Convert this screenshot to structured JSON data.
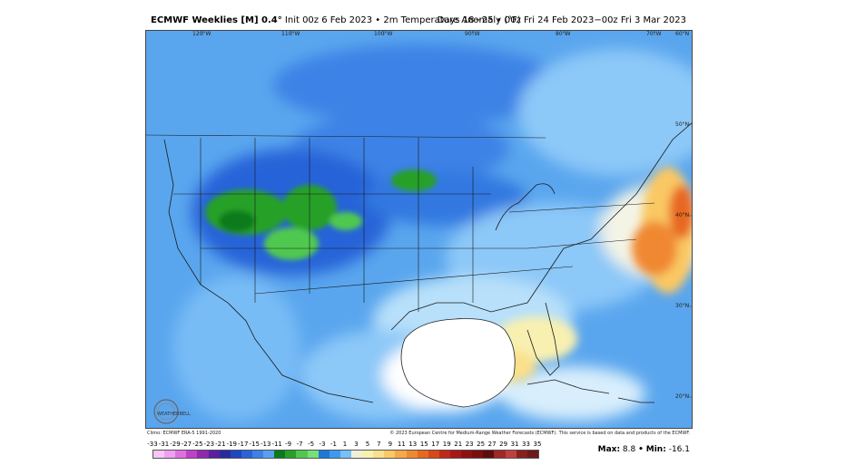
{
  "header": {
    "model": "ECMWF Weeklies [M] 0.4",
    "degree": "°",
    "init": "Init 00z 6 Feb 2023",
    "sep": "•",
    "field": "2m Temperature Anomaly (°F)",
    "valid": "Days 18−25 • 00z Fri 24 Feb 2023−00z Fri 3 Mar 2023"
  },
  "map": {
    "lon_labels": [
      "120°W",
      "110°W",
      "100°W",
      "90°W",
      "80°W",
      "70°W"
    ],
    "lat_labels": [
      "60°N",
      "50°N",
      "40°N",
      "30°N",
      "20°N"
    ],
    "logo_text": "WEATHERBELL"
  },
  "footer": {
    "climo": "Climo: ECMWF ERA-5 1991-2020",
    "copyright": "© 2023 European Centre for Medium-Range Weather Forecasts (ECMWF). This service is based on data and products of the ECMWF."
  },
  "scale": {
    "labels": [
      "-33",
      "-31",
      "-29",
      "-27",
      "-25",
      "-23",
      "-21",
      "-19",
      "-17",
      "-15",
      "-13",
      "-11",
      "-9",
      "-7",
      "-5",
      "-3",
      "-1",
      "1",
      "3",
      "5",
      "7",
      "9",
      "11",
      "13",
      "15",
      "17",
      "19",
      "21",
      "23",
      "25",
      "27",
      "29",
      "31",
      "33",
      "35"
    ],
    "colors": [
      "#f7c6f7",
      "#f0a0f0",
      "#e070e0",
      "#c040c8",
      "#9028b0",
      "#5a1ea0",
      "#2a2aa0",
      "#1e46c0",
      "#2864d8",
      "#3c82e6",
      "#5aa0f0",
      "#0a7a1e",
      "#28a028",
      "#50c850",
      "#78e078",
      "#1e78d8",
      "#3c9af0",
      "#78c0f8",
      "#f0f0d8",
      "#f8f0b0",
      "#fae08c",
      "#fac864",
      "#f8a848",
      "#f08830",
      "#e86820",
      "#d84818",
      "#c02818",
      "#a81818",
      "#901010",
      "#781010",
      "#600c0c",
      "#a02828",
      "#c04040",
      "#882020",
      "#701818"
    ]
  },
  "stats": {
    "max_label": "Max:",
    "max_value": "8.8",
    "sep": "•",
    "min_label": "Min:",
    "min_value": "-16.1"
  }
}
